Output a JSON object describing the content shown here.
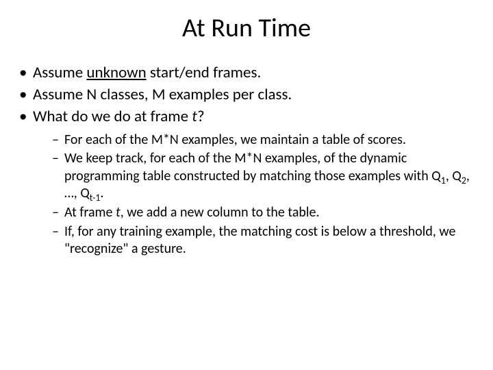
{
  "title": "At Run Time",
  "bullets": [
    {
      "pre": "Assume ",
      "underline": "unknown",
      "post": " start/end frames."
    },
    {
      "text": "Assume N classes, M examples per class."
    },
    {
      "pre": "What do we do at frame ",
      "italic": "t",
      "post": "?"
    }
  ],
  "subbullets": [
    {
      "text": "For each of the M*N examples, we maintain a table of scores."
    },
    {
      "pre": "We keep track, for each of the M*N examples, of the dynamic programming table constructed by matching those examples with Q",
      "s1": "1",
      "m1": ", Q",
      "s2": "2",
      "m2": ", …, Q",
      "s3": "t-1",
      "post": "."
    },
    {
      "pre": "At frame ",
      "italic": "t",
      "post": ", we add a new column to the table."
    },
    {
      "text": "If, for any training example, the matching cost is below a threshold, we \"recognize\" a gesture."
    }
  ],
  "style": {
    "title_fontsize": 38,
    "body_fontsize": 23,
    "sub_fontsize": 20,
    "text_color": "#000000",
    "background_color": "#ffffff",
    "font_family": "Calibri"
  }
}
